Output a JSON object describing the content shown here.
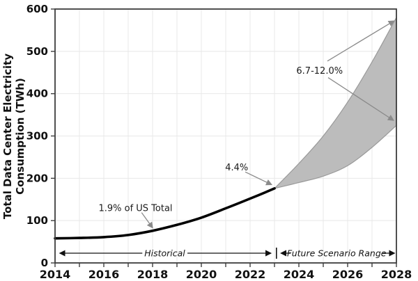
{
  "chart_data": {
    "type": "line",
    "title": "",
    "ylabel_lines": [
      "Total Data Center Electricity",
      "Consumption (TWh)"
    ],
    "xlabel": "",
    "xlim": [
      2014,
      2028
    ],
    "ylim": [
      0,
      600
    ],
    "x_tick_labels": [
      "2014",
      "2016",
      "2018",
      "2020",
      "2022",
      "2024",
      "2026",
      "2028"
    ],
    "x_tick_values": [
      2014,
      2016,
      2018,
      2020,
      2022,
      2024,
      2026,
      2028
    ],
    "x_minor_tick_values": [
      2015,
      2017,
      2019,
      2021,
      2023,
      2025,
      2027
    ],
    "y_tick_labels": [
      "0",
      "100",
      "200",
      "300",
      "400",
      "500",
      "600"
    ],
    "y_tick_values": [
      0,
      100,
      200,
      300,
      400,
      500,
      600
    ],
    "grid": {
      "on": true,
      "vertical_step_years": 1,
      "horizontal_step_twh": 100
    },
    "series": [
      {
        "name": "Historical",
        "kind": "line",
        "x": [
          2014,
          2015,
          2016,
          2017,
          2018,
          2019,
          2020,
          2021,
          2022,
          2023
        ],
        "values": [
          58,
          59,
          61,
          66,
          76,
          90,
          107,
          129,
          152,
          176
        ]
      },
      {
        "name": "Future Scenario Range (lower bound)",
        "kind": "band-lower",
        "x": [
          2023,
          2024,
          2025,
          2026,
          2027,
          2028
        ],
        "values": [
          176,
          190,
          205,
          230,
          273,
          325
        ]
      },
      {
        "name": "Future Scenario Range (upper bound)",
        "kind": "band-upper",
        "x": [
          2023,
          2024,
          2025,
          2026,
          2027,
          2028
        ],
        "values": [
          176,
          235,
          300,
          380,
          475,
          580
        ]
      }
    ],
    "annotations": [
      {
        "text": "1.9% of US Total",
        "text_at": [
          2017.3,
          130
        ],
        "arrows": [
          {
            "from": [
              2017.55,
              119
            ],
            "to": [
              2018.0,
              83
            ]
          }
        ]
      },
      {
        "text": "4.4%",
        "text_at": [
          2021.45,
          226
        ],
        "arrows": [
          {
            "from": [
              2021.8,
              215
            ],
            "to": [
              2022.88,
              185
            ]
          }
        ]
      },
      {
        "text": "6.7-12.0%",
        "text_at": [
          2024.85,
          455
        ],
        "arrows": [
          {
            "from": [
              2025.17,
              477
            ],
            "to": [
              2027.9,
              572
            ]
          },
          {
            "from": [
              2025.2,
              438
            ],
            "to": [
              2027.88,
              337
            ]
          }
        ]
      }
    ],
    "range_labels": [
      {
        "text": "Historical",
        "text_at": [
          2018.5,
          23
        ],
        "lines": [
          {
            "from": 2017.58,
            "to": 2014.2
          },
          {
            "from": 2019.43,
            "to": 2022.85
          }
        ]
      },
      {
        "text": "Future Scenario Range",
        "text_at": [
          2025.55,
          23
        ],
        "lines": [
          {
            "from": 2023.66,
            "to": 2023.27
          },
          {
            "from": 2027.44,
            "to": 2027.92
          }
        ]
      }
    ],
    "divider_year": 2023.08,
    "style": {
      "line_color": "#000000",
      "band_fill": "#bcbcbc",
      "band_edge": "#999999",
      "spine_color": "#3d3d3d",
      "grid_color": "#e8e8e8",
      "arrow_color": "#8a8a8a",
      "range_arrow_color": "#111111"
    }
  }
}
